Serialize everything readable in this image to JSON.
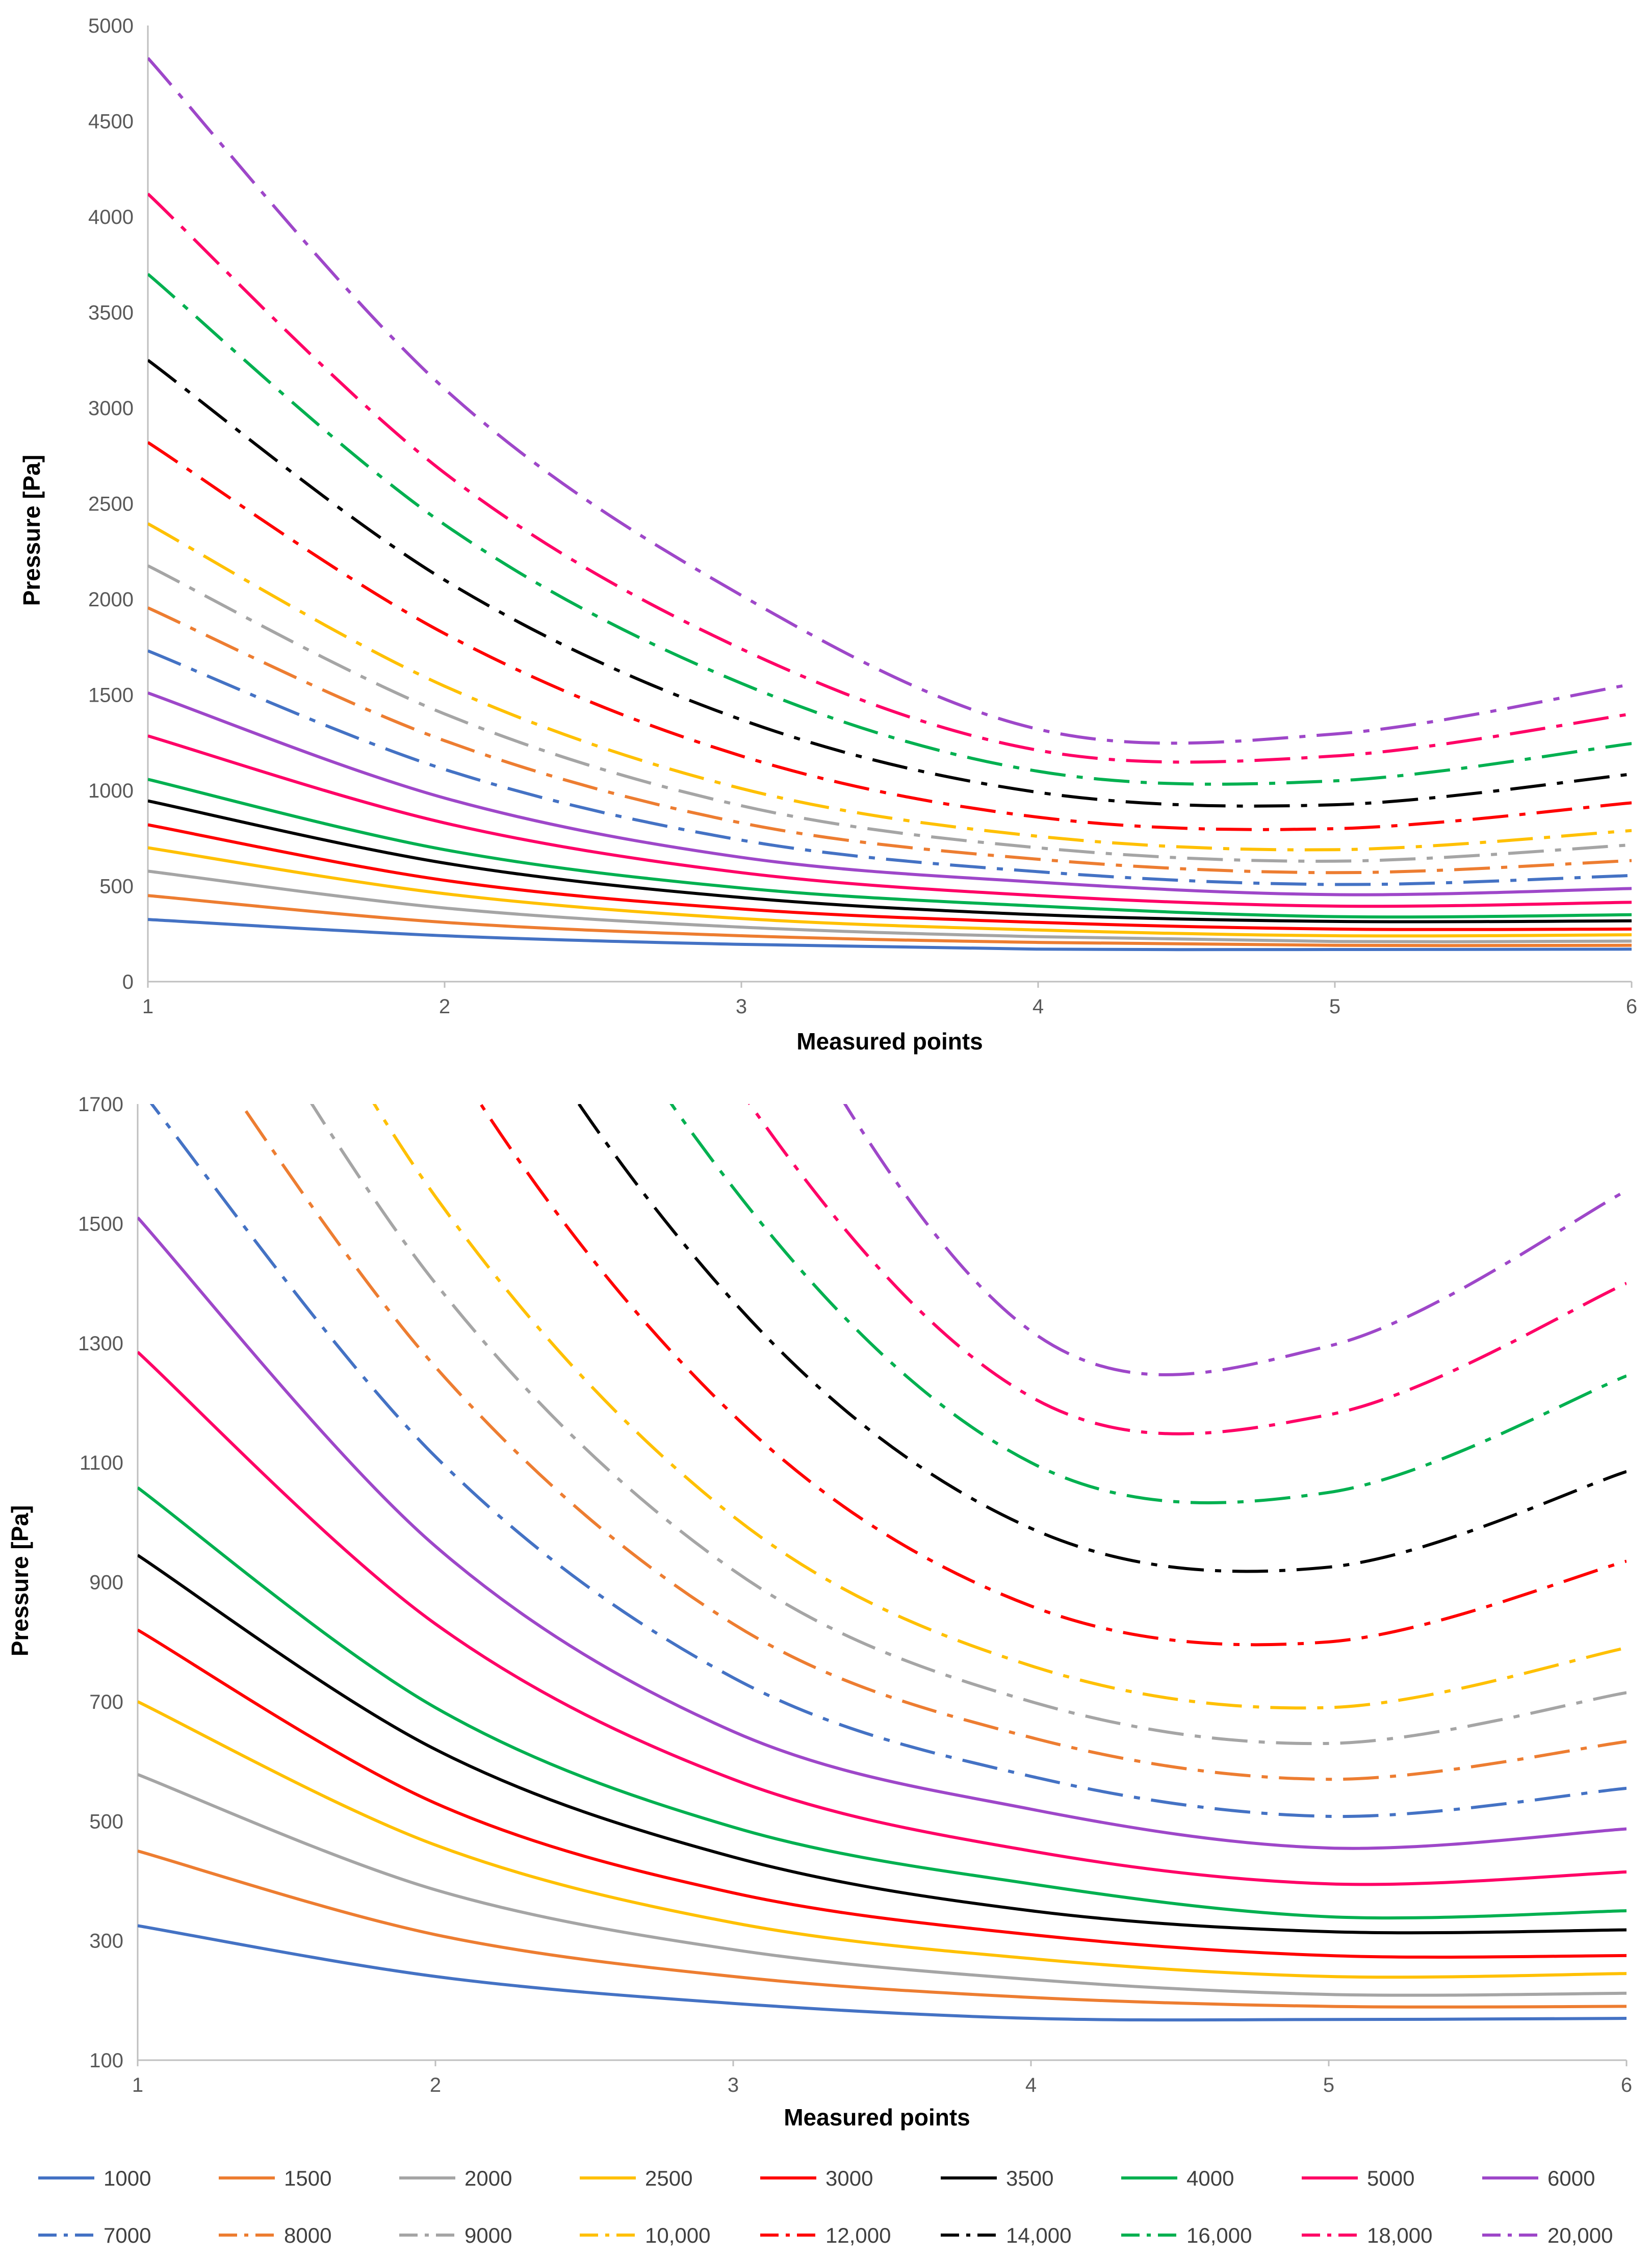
{
  "chart_data": [
    {
      "type": "line",
      "title": "",
      "xlabel": "Measured points",
      "ylabel": "Pressure [Pa]",
      "xlim": [
        1,
        6
      ],
      "ylim": [
        0,
        5000
      ],
      "x_ticks": [
        "1",
        "2",
        "3",
        "4",
        "5",
        "6"
      ],
      "y_ticks": [
        "0",
        "500",
        "1000",
        "1500",
        "2000",
        "2500",
        "3000",
        "3500",
        "4000",
        "4500",
        "5000"
      ]
    },
    {
      "type": "line",
      "title": "",
      "xlabel": "Measured points",
      "ylabel": "Pressure [Pa]",
      "xlim": [
        1,
        6
      ],
      "ylim": [
        100,
        1700
      ],
      "x_ticks": [
        "1",
        "2",
        "3",
        "4",
        "5",
        "6"
      ],
      "y_ticks": [
        "100",
        "300",
        "500",
        "700",
        "900",
        "1100",
        "1300",
        "1500",
        "1700"
      ]
    }
  ],
  "x": [
    1,
    2,
    3,
    4,
    5,
    6
  ],
  "series": [
    {
      "name": "1000",
      "color": "#4472C4",
      "dash": "solid",
      "values": [
        325,
        240,
        195,
        170,
        168,
        170
      ]
    },
    {
      "name": "1500",
      "color": "#ED7D31",
      "dash": "solid",
      "values": [
        450,
        310,
        240,
        205,
        190,
        190
      ]
    },
    {
      "name": "2000",
      "color": "#A5A5A5",
      "dash": "solid",
      "values": [
        578,
        385,
        285,
        235,
        210,
        212
      ]
    },
    {
      "name": "2500",
      "color": "#FFC000",
      "dash": "solid",
      "values": [
        700,
        460,
        330,
        270,
        240,
        245
      ]
    },
    {
      "name": "3000",
      "color": "#FF0000",
      "dash": "solid",
      "values": [
        820,
        530,
        380,
        310,
        275,
        275
      ]
    },
    {
      "name": "3500",
      "color": "#000000",
      "dash": "solid",
      "values": [
        945,
        620,
        440,
        350,
        315,
        318
      ]
    },
    {
      "name": "4000",
      "color": "#00B050",
      "dash": "solid",
      "values": [
        1058,
        690,
        490,
        395,
        340,
        350
      ]
    },
    {
      "name": "5000",
      "color": "#FF0066",
      "dash": "solid",
      "values": [
        1285,
        830,
        570,
        450,
        395,
        415
      ]
    },
    {
      "name": "6000",
      "color": "#9E47C9",
      "dash": "solid",
      "values": [
        1510,
        960,
        650,
        520,
        455,
        487
      ]
    },
    {
      "name": "7000",
      "color": "#4472C4",
      "dash": "dashdot",
      "values": [
        1730,
        1110,
        740,
        575,
        508,
        555
      ]
    },
    {
      "name": "8000",
      "color": "#ED7D31",
      "dash": "dashdot",
      "values": [
        1955,
        1260,
        830,
        640,
        570,
        633
      ]
    },
    {
      "name": "9000",
      "color": "#A5A5A5",
      "dash": "dashdot",
      "values": [
        2175,
        1400,
        920,
        700,
        630,
        715
      ]
    },
    {
      "name": "10,000",
      "color": "#FFC000",
      "dash": "dashdot",
      "values": [
        2395,
        1545,
        1010,
        760,
        690,
        790
      ]
    },
    {
      "name": "12,000",
      "color": "#FF0000",
      "dash": "dashdot",
      "values": [
        2820,
        1820,
        1180,
        860,
        800,
        935
      ]
    },
    {
      "name": "14,000",
      "color": "#000000",
      "dash": "dashdot",
      "values": [
        3250,
        2100,
        1370,
        990,
        925,
        1085
      ]
    },
    {
      "name": "16,000",
      "color": "#00B050",
      "dash": "dashdot",
      "values": [
        3700,
        2390,
        1560,
        1100,
        1050,
        1245
      ]
    },
    {
      "name": "18,000",
      "color": "#FF0066",
      "dash": "dashdot",
      "values": [
        4120,
        2660,
        1740,
        1210,
        1180,
        1400
      ]
    },
    {
      "name": "20,000",
      "color": "#9E47C9",
      "dash": "dashdot",
      "values": [
        4830,
        3100,
        2020,
        1320,
        1295,
        1555
      ]
    }
  ]
}
